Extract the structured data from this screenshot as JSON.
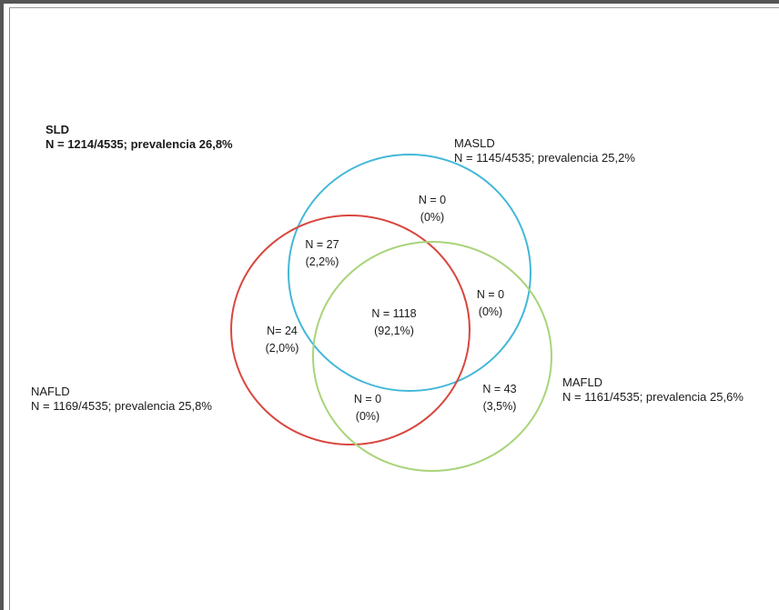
{
  "sets": {
    "sld": {
      "name": "SLD",
      "stat": "N = 1214/4535;  prevalencia  26,8%"
    },
    "masld": {
      "name": "MASLD",
      "stat": "N = 1145/4535;  prevalencia  25,2%",
      "color": "#43b8d8"
    },
    "nafld": {
      "name": "NAFLD",
      "stat": "N = 1169/4535;  prevalencia  25,8%",
      "color": "#d9473f"
    },
    "mafld": {
      "name": "MAFLD",
      "stat": "N = 1161/4535;  prevalencia  25,6%",
      "color": "#a8d47a"
    }
  },
  "regions": {
    "masld_only": {
      "n": "N = 0",
      "pct": "(0%)"
    },
    "masld_nafld": {
      "n": "N = 27",
      "pct": "(2,2%)"
    },
    "masld_mafld": {
      "n": "N = 0",
      "pct": "(0%)"
    },
    "nafld_only": {
      "n": "N= 24",
      "pct": "(2,0%)"
    },
    "all_three": {
      "n": "N = 1118",
      "pct": "(92,1%)"
    },
    "nafld_mafld": {
      "n": "N = 0",
      "pct": "(0%)"
    },
    "mafld_only": {
      "n": "N = 43",
      "pct": "(3,5%)"
    }
  }
}
